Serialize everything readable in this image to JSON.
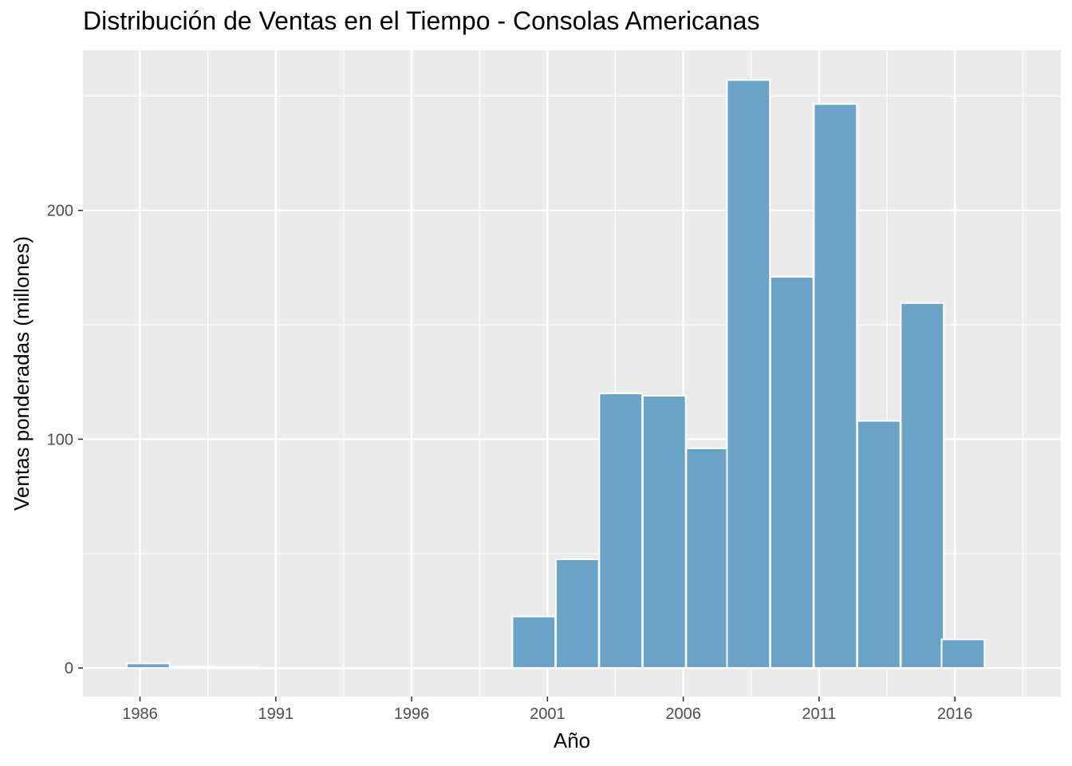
{
  "chart_data": {
    "type": "bar",
    "title": "Distribución de Ventas en el Tiempo - Consolas Americanas",
    "xlabel": "Año",
    "ylabel": "Ventas ponderadas (millones)",
    "x_ticks": [
      1986,
      1991,
      1996,
      2001,
      2006,
      2011,
      2016
    ],
    "y_ticks": [
      0,
      100,
      200
    ],
    "xlim": [
      1983.9,
      2019.9
    ],
    "ylim": [
      -12.5,
      270
    ],
    "grid": true,
    "bin_width": 1.58,
    "bins": [
      {
        "center": 1986.3,
        "value": 2.0
      },
      {
        "center": 1987.9,
        "value": 0.6
      },
      {
        "center": 1989.5,
        "value": 0.4
      },
      {
        "center": 1991.1,
        "value": 0.1
      },
      {
        "center": 1992.6,
        "value": 0.1
      },
      {
        "center": 1994.2,
        "value": 0.1
      },
      {
        "center": 1995.8,
        "value": 0.1
      },
      {
        "center": 1997.4,
        "value": 0.1
      },
      {
        "center": 1999.0,
        "value": 0.1
      },
      {
        "center": 2000.5,
        "value": 22.5
      },
      {
        "center": 2002.1,
        "value": 47.5
      },
      {
        "center": 2003.7,
        "value": 120.0
      },
      {
        "center": 2005.3,
        "value": 119.0
      },
      {
        "center": 2006.9,
        "value": 96.0
      },
      {
        "center": 2008.4,
        "value": 257.0
      },
      {
        "center": 2010.0,
        "value": 171.0
      },
      {
        "center": 2011.6,
        "value": 246.5
      },
      {
        "center": 2013.2,
        "value": 108.0
      },
      {
        "center": 2014.8,
        "value": 159.5
      },
      {
        "center": 2016.3,
        "value": 12.5
      }
    ],
    "bar_color": "#6BA3C8",
    "panel_color": "#EBEBEB",
    "grid_color": "#FFFFFF"
  }
}
